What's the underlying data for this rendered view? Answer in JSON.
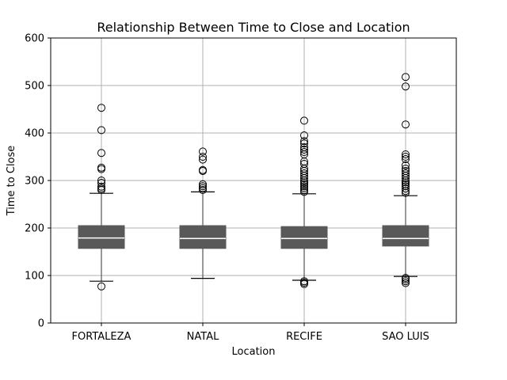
{
  "chart_data": {
    "type": "box",
    "title": "Relationship Between Time to Close and Location",
    "xlabel": "Location",
    "ylabel": "Time to Close",
    "ylim": [
      0,
      600
    ],
    "yticks": [
      0,
      100,
      200,
      300,
      400,
      500,
      600
    ],
    "grid": true,
    "legend": "none",
    "colors": {
      "box": "#595959",
      "median": "#ffffff",
      "whisker": "#555555",
      "grid": "#b0b0b0"
    },
    "categories": [
      "FORTALEZA",
      "NATAL",
      "RECIFE",
      "SAO LUIS"
    ],
    "boxes": [
      {
        "category": "FORTALEZA",
        "whisker_low": 88,
        "q1": 157,
        "median": 179,
        "q3": 205,
        "whisker_high": 273,
        "outliers": [
          77,
          280,
          283,
          287,
          295,
          300,
          324,
          327,
          358,
          406,
          453
        ]
      },
      {
        "category": "NATAL",
        "whisker_low": 94,
        "q1": 157,
        "median": 178,
        "q3": 205,
        "whisker_high": 276,
        "outliers": [
          280,
          284,
          288,
          292,
          320,
          322,
          344,
          350,
          361
        ]
      },
      {
        "category": "RECIFE",
        "whisker_low": 90,
        "q1": 157,
        "median": 178,
        "q3": 203,
        "whisker_high": 272,
        "outliers": [
          82,
          85,
          88,
          276,
          280,
          284,
          288,
          292,
          296,
          300,
          305,
          310,
          315,
          320,
          325,
          335,
          340,
          355,
          360,
          365,
          370,
          378,
          383,
          395,
          426
        ]
      },
      {
        "category": "SAO LUIS",
        "whisker_low": 98,
        "q1": 162,
        "median": 178,
        "q3": 205,
        "whisker_high": 268,
        "outliers": [
          84,
          88,
          92,
          95,
          274,
          278,
          283,
          288,
          292,
          296,
          300,
          305,
          310,
          315,
          320,
          325,
          332,
          345,
          350,
          355,
          418,
          498,
          518
        ]
      }
    ]
  }
}
